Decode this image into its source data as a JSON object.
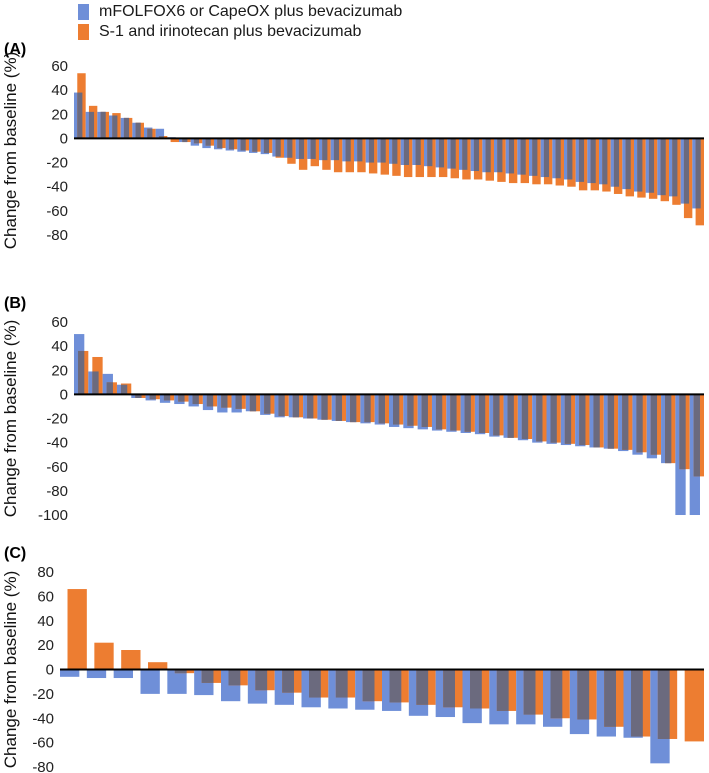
{
  "legend": {
    "items": [
      {
        "label": "mFOLFOX6 or CapeOX plus bevacizumab",
        "color": "#6F8FD8"
      },
      {
        "label": "S-1 and irinotecan plus bevacizumab",
        "color": "#ED7D31"
      }
    ]
  },
  "colors": {
    "series_a": "#6F8FD8",
    "series_b": "#ED7D31",
    "overlap": "#6B6A7E"
  },
  "chart_data": [
    {
      "type": "bar",
      "panel_label": "(A)",
      "ylabel": "Change from baseline (%)",
      "ylim": [
        -80,
        60
      ],
      "yticks": [
        60,
        40,
        20,
        0,
        -20,
        -40,
        -60,
        -80
      ],
      "series": [
        {
          "name": "mFOLFOX6 or CapeOX plus bevacizumab",
          "values": [
            38,
            22,
            22,
            19,
            17,
            13,
            9,
            8,
            1,
            -3,
            -6,
            -8,
            -9,
            -10,
            -11,
            -12,
            -13,
            -15,
            -16,
            -17,
            -17,
            -18,
            -18,
            -19,
            -19,
            -20,
            -20,
            -21,
            -22,
            -22,
            -23,
            -24,
            -25,
            -26,
            -27,
            -28,
            -28,
            -29,
            -30,
            -31,
            -32,
            -33,
            -34,
            -36,
            -37,
            -38,
            -40,
            -42,
            -44,
            -45,
            -47,
            -48,
            -54,
            -58
          ]
        },
        {
          "name": "S-1 and irinotecan plus bevacizumab",
          "values": [
            54,
            27,
            22,
            21,
            17,
            13,
            8,
            2,
            -3,
            -3,
            -4,
            -6,
            -8,
            -9,
            -10,
            -11,
            -12,
            -16,
            -21,
            -26,
            -23,
            -26,
            -28,
            -28,
            -28,
            -29,
            -30,
            -31,
            -32,
            -32,
            -32,
            -32,
            -33,
            -34,
            -34,
            -35,
            -36,
            -37,
            -37,
            -38,
            -38,
            -39,
            -40,
            -43,
            -43,
            -44,
            -46,
            -48,
            -49,
            -50,
            -52,
            -55,
            -66,
            -72
          ]
        }
      ]
    },
    {
      "type": "bar",
      "panel_label": "(B)",
      "ylabel": "Change from baseline (%)",
      "ylim": [
        -100,
        60
      ],
      "yticks": [
        60,
        40,
        20,
        0,
        -20,
        -40,
        -60,
        -80,
        -100
      ],
      "series": [
        {
          "name": "mFOLFOX6 or CapeOX plus bevacizumab",
          "values": [
            50,
            19,
            17,
            8,
            -3,
            -5,
            -7,
            -8,
            -10,
            -13,
            -15,
            -15,
            -14,
            -17,
            -19,
            -19,
            -20,
            -21,
            -22,
            -23,
            -24,
            -25,
            -27,
            -28,
            -29,
            -30,
            -31,
            -32,
            -33,
            -35,
            -36,
            -38,
            -40,
            -41,
            -42,
            -43,
            -44,
            -45,
            -47,
            -50,
            -53,
            -57,
            -100,
            -100
          ]
        },
        {
          "name": "S-1 and irinotecan plus bevacizumab",
          "values": [
            36,
            31,
            10,
            9,
            -3,
            -4,
            -5,
            -6,
            -8,
            -10,
            -11,
            -12,
            -14,
            -16,
            -18,
            -19,
            -20,
            -21,
            -22,
            -23,
            -23,
            -24,
            -25,
            -26,
            -27,
            -29,
            -30,
            -31,
            -32,
            -34,
            -36,
            -37,
            -39,
            -40,
            -41,
            -42,
            -44,
            -45,
            -46,
            -48,
            -50,
            -57,
            -62,
            -68
          ]
        }
      ]
    },
    {
      "type": "bar",
      "panel_label": "(C)",
      "ylabel": "Change from baseline (%)",
      "ylim": [
        -80,
        80
      ],
      "yticks": [
        80,
        60,
        40,
        20,
        0,
        -20,
        -40,
        -60,
        -80
      ],
      "series": [
        {
          "name": "mFOLFOX6 or CapeOX plus bevacizumab",
          "values": [
            -6,
            -7,
            -7,
            -20,
            -20,
            -21,
            -26,
            -28,
            -29,
            -31,
            -32,
            -33,
            -34,
            -38,
            -39,
            -44,
            -45,
            -45,
            -47,
            -53,
            -55,
            -56,
            -77
          ]
        },
        {
          "name": "S-1 and irinotecan plus bevacizumab",
          "values": [
            66,
            22,
            16,
            6,
            -3,
            -11,
            -13,
            -17,
            -19,
            -23,
            -23,
            -26,
            -27,
            -29,
            -31,
            -32,
            -34,
            -37,
            -40,
            -41,
            -47,
            -55,
            -57,
            -59
          ]
        }
      ]
    }
  ]
}
